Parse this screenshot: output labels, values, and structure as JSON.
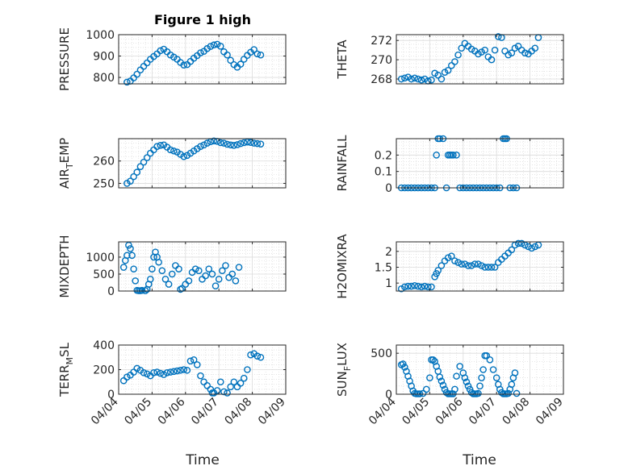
{
  "figure_title": "Figure 1 high",
  "x_axis_label": "Time",
  "x_tick_labels": [
    "04/04",
    "04/05",
    "04/06",
    "04/07",
    "04/08",
    "04/09"
  ],
  "marker_color": "#0072BD",
  "chart_data": [
    {
      "type": "scatter",
      "id": "pressure",
      "title": "Figure 1 high",
      "ylabel": "PRESSURE",
      "ylabel_sub": "",
      "xlim": [
        0,
        5
      ],
      "ylim": [
        770,
        1000
      ],
      "yticks": [
        800,
        900,
        1000
      ],
      "ytick_labels": [
        "800",
        "900",
        "1000"
      ],
      "x": [
        0.25,
        0.35,
        0.45,
        0.55,
        0.65,
        0.75,
        0.85,
        0.95,
        1.05,
        1.15,
        1.25,
        1.35,
        1.45,
        1.55,
        1.65,
        1.75,
        1.85,
        1.95,
        2.05,
        2.15,
        2.25,
        2.35,
        2.45,
        2.55,
        2.65,
        2.75,
        2.85,
        2.95,
        3.05,
        3.15,
        3.25,
        3.35,
        3.45,
        3.55,
        3.65,
        3.75,
        3.85,
        3.95,
        4.05,
        4.15,
        4.25
      ],
      "values": [
        778,
        783,
        798,
        815,
        835,
        852,
        868,
        885,
        898,
        910,
        925,
        932,
        920,
        905,
        895,
        885,
        870,
        858,
        860,
        875,
        890,
        902,
        915,
        922,
        935,
        945,
        952,
        955,
        946,
        920,
        905,
        880,
        860,
        848,
        862,
        885,
        903,
        918,
        930,
        910,
        905
      ]
    },
    {
      "type": "scatter",
      "id": "theta",
      "title": "",
      "ylabel": "THETA",
      "ylabel_sub": "",
      "xlim": [
        0,
        5
      ],
      "ylim": [
        267.5,
        272.6
      ],
      "yticks": [
        268,
        270,
        272
      ],
      "ytick_labels": [
        "268",
        "270",
        "272"
      ],
      "x": [
        0.15,
        0.25,
        0.35,
        0.45,
        0.55,
        0.65,
        0.75,
        0.85,
        0.95,
        1.05,
        1.15,
        1.25,
        1.35,
        1.45,
        1.55,
        1.65,
        1.75,
        1.85,
        1.95,
        2.05,
        2.15,
        2.25,
        2.35,
        2.45,
        2.55,
        2.65,
        2.75,
        2.85,
        2.95,
        3.05,
        3.15,
        3.25,
        3.35,
        3.45,
        3.55,
        3.65,
        3.75,
        3.85,
        3.95,
        4.05,
        4.15,
        4.25
      ],
      "values": [
        268.0,
        268.1,
        268.2,
        268.0,
        268.1,
        268.0,
        267.9,
        268.0,
        267.8,
        267.9,
        268.6,
        268.4,
        268.0,
        268.7,
        268.9,
        269.4,
        269.8,
        270.5,
        271.2,
        271.7,
        271.4,
        271.1,
        270.9,
        270.6,
        270.8,
        271.0,
        270.3,
        270.0,
        271.0,
        272.4,
        272.3,
        270.9,
        270.5,
        270.7,
        271.2,
        271.4,
        271.0,
        270.7,
        270.6,
        270.9,
        271.2,
        272.3
      ]
    },
    {
      "type": "scatter",
      "id": "air_temp",
      "title": "",
      "ylabel": "AIR",
      "ylabel_sub": "T",
      "ylabel_suffix": "EMP",
      "xlim": [
        0,
        5
      ],
      "ylim": [
        248,
        270
      ],
      "yticks": [
        250,
        260
      ],
      "ytick_labels": [
        "250",
        "260"
      ],
      "x": [
        0.25,
        0.35,
        0.45,
        0.55,
        0.65,
        0.75,
        0.85,
        0.95,
        1.05,
        1.15,
        1.25,
        1.35,
        1.45,
        1.55,
        1.65,
        1.75,
        1.85,
        1.95,
        2.05,
        2.15,
        2.25,
        2.35,
        2.45,
        2.55,
        2.65,
        2.75,
        2.85,
        2.95,
        3.05,
        3.15,
        3.25,
        3.35,
        3.45,
        3.55,
        3.65,
        3.75,
        3.85,
        3.95,
        4.05,
        4.15,
        4.25
      ],
      "values": [
        250.0,
        251.0,
        253.0,
        255.0,
        257.5,
        259.5,
        261.5,
        263.5,
        265.0,
        266.5,
        267.0,
        267.2,
        266.2,
        265.0,
        264.5,
        264.0,
        263.0,
        262.0,
        262.5,
        263.5,
        264.5,
        265.5,
        266.5,
        267.2,
        268.0,
        268.6,
        269.0,
        268.8,
        268.2,
        268.0,
        267.5,
        267.2,
        267.0,
        267.3,
        267.8,
        268.2,
        268.5,
        268.3,
        268.0,
        267.8,
        267.6
      ]
    },
    {
      "type": "scatter",
      "id": "rainfall",
      "title": "",
      "ylabel": "RAINFALL",
      "ylabel_sub": "",
      "xlim": [
        0,
        5
      ],
      "ylim": [
        0,
        0.3
      ],
      "yticks": [
        0,
        0.1,
        0.2
      ],
      "ytick_labels": [
        "0",
        "0.1",
        "0.2"
      ],
      "x": [
        0.15,
        0.25,
        0.35,
        0.45,
        0.55,
        0.65,
        0.75,
        0.85,
        0.95,
        1.05,
        1.15,
        1.2,
        1.25,
        1.3,
        1.4,
        1.5,
        1.55,
        1.6,
        1.65,
        1.7,
        1.8,
        1.9,
        2.0,
        2.1,
        2.2,
        2.3,
        2.4,
        2.5,
        2.6,
        2.7,
        2.8,
        2.9,
        3.0,
        3.1,
        3.2,
        3.25,
        3.3,
        3.4,
        3.5,
        3.6
      ],
      "values": [
        0,
        0,
        0,
        0,
        0,
        0,
        0,
        0,
        0,
        0,
        0,
        0.2,
        0.3,
        0.3,
        0.3,
        0,
        0.2,
        0.2,
        0.2,
        0.2,
        0.2,
        0,
        0,
        0,
        0,
        0,
        0,
        0,
        0,
        0,
        0,
        0,
        0,
        0,
        0.3,
        0.3,
        0.3,
        0,
        0,
        0
      ]
    },
    {
      "type": "scatter",
      "id": "mixdepth",
      "title": "",
      "ylabel": "MIXDEPTH",
      "ylabel_sub": "",
      "xlim": [
        0,
        5
      ],
      "ylim": [
        0,
        1450
      ],
      "yticks": [
        0,
        500,
        1000
      ],
      "ytick_labels": [
        "0",
        "500",
        "1000"
      ],
      "x": [
        0.15,
        0.2,
        0.25,
        0.3,
        0.35,
        0.4,
        0.45,
        0.5,
        0.55,
        0.6,
        0.65,
        0.7,
        0.8,
        0.85,
        0.9,
        0.95,
        1.0,
        1.05,
        1.1,
        1.15,
        1.2,
        1.3,
        1.4,
        1.5,
        1.6,
        1.7,
        1.8,
        1.85,
        1.9,
        2.0,
        2.1,
        2.2,
        2.3,
        2.4,
        2.5,
        2.6,
        2.7,
        2.8,
        2.9,
        3.0,
        3.1,
        3.2,
        3.3,
        3.4,
        3.5,
        3.6
      ],
      "values": [
        700,
        900,
        1050,
        1350,
        1250,
        1050,
        650,
        300,
        20,
        10,
        10,
        20,
        10,
        50,
        200,
        350,
        650,
        1000,
        1150,
        1000,
        850,
        600,
        350,
        200,
        500,
        750,
        650,
        50,
        80,
        200,
        300,
        550,
        650,
        600,
        350,
        450,
        650,
        500,
        150,
        350,
        600,
        750,
        400,
        500,
        300,
        700
      ]
    },
    {
      "type": "scatter",
      "id": "h2omixra",
      "title": "",
      "ylabel": "H2OMIXRA",
      "ylabel_sub": "",
      "xlim": [
        0,
        5
      ],
      "ylim": [
        0.75,
        2.3
      ],
      "yticks": [
        1,
        1.5,
        2
      ],
      "ytick_labels": [
        "1",
        "1.5",
        "2"
      ],
      "x": [
        0.15,
        0.25,
        0.35,
        0.45,
        0.55,
        0.65,
        0.75,
        0.85,
        0.95,
        1.05,
        1.15,
        1.2,
        1.25,
        1.35,
        1.45,
        1.55,
        1.65,
        1.75,
        1.85,
        1.95,
        2.05,
        2.15,
        2.25,
        2.35,
        2.45,
        2.55,
        2.65,
        2.75,
        2.85,
        2.95,
        3.05,
        3.15,
        3.25,
        3.35,
        3.45,
        3.55,
        3.65,
        3.75,
        3.85,
        3.95,
        4.05,
        4.15,
        4.25
      ],
      "values": [
        0.82,
        0.88,
        0.9,
        0.9,
        0.92,
        0.9,
        0.88,
        0.9,
        0.88,
        0.88,
        1.2,
        1.3,
        1.4,
        1.55,
        1.7,
        1.8,
        1.85,
        1.7,
        1.65,
        1.6,
        1.6,
        1.55,
        1.55,
        1.6,
        1.6,
        1.55,
        1.5,
        1.5,
        1.5,
        1.5,
        1.65,
        1.75,
        1.85,
        1.95,
        2.05,
        2.2,
        2.25,
        2.25,
        2.2,
        2.15,
        2.1,
        2.15,
        2.2
      ]
    },
    {
      "type": "scatter",
      "id": "terrain",
      "title": "",
      "ylabel": "TERR",
      "ylabel_sub": "M",
      "ylabel_suffix": "SL",
      "xlim": [
        0,
        5
      ],
      "ylim": [
        0,
        400
      ],
      "yticks": [
        0,
        200,
        400
      ],
      "ytick_labels": [
        "0",
        "200",
        "400"
      ],
      "x": [
        0.15,
        0.25,
        0.35,
        0.45,
        0.55,
        0.65,
        0.75,
        0.85,
        0.95,
        1.05,
        1.15,
        1.25,
        1.35,
        1.45,
        1.55,
        1.65,
        1.75,
        1.85,
        1.95,
        2.05,
        2.15,
        2.25,
        2.35,
        2.45,
        2.55,
        2.65,
        2.75,
        2.8,
        2.85,
        2.95,
        3.05,
        3.15,
        3.25,
        3.35,
        3.45,
        3.55,
        3.65,
        3.75,
        3.85,
        3.95,
        4.05,
        4.15,
        4.25
      ],
      "values": [
        110,
        140,
        155,
        180,
        210,
        195,
        175,
        165,
        150,
        175,
        180,
        170,
        160,
        175,
        180,
        185,
        190,
        195,
        200,
        195,
        270,
        280,
        240,
        150,
        100,
        70,
        40,
        10,
        10,
        30,
        100,
        20,
        10,
        60,
        100,
        60,
        90,
        130,
        200,
        320,
        330,
        310,
        300
      ]
    },
    {
      "type": "scatter",
      "id": "sunflux",
      "title": "",
      "ylabel": "SUN",
      "ylabel_sub": "F",
      "ylabel_suffix": "LUX",
      "xlim": [
        0,
        5
      ],
      "ylim": [
        0,
        600
      ],
      "yticks": [
        0,
        500
      ],
      "ytick_labels": [
        "0",
        "500"
      ],
      "x": [
        0.15,
        0.2,
        0.25,
        0.3,
        0.35,
        0.4,
        0.45,
        0.5,
        0.55,
        0.6,
        0.65,
        0.7,
        0.8,
        0.9,
        1.0,
        1.05,
        1.1,
        1.15,
        1.2,
        1.25,
        1.3,
        1.35,
        1.4,
        1.45,
        1.5,
        1.55,
        1.6,
        1.65,
        1.7,
        1.75,
        1.8,
        1.9,
        2.0,
        2.05,
        2.1,
        2.15,
        2.2,
        2.25,
        2.3,
        2.35,
        2.4,
        2.45,
        2.5,
        2.55,
        2.6,
        2.65,
        2.7,
        2.8,
        2.9,
        3.0,
        3.05,
        3.1,
        3.15,
        3.2,
        3.25,
        3.3,
        3.35,
        3.4,
        3.45,
        3.5,
        3.55,
        3.6
      ],
      "values": [
        360,
        370,
        330,
        280,
        220,
        160,
        100,
        40,
        10,
        5,
        5,
        5,
        10,
        60,
        200,
        420,
        420,
        400,
        340,
        280,
        210,
        160,
        110,
        60,
        20,
        5,
        5,
        5,
        5,
        60,
        220,
        340,
        260,
        200,
        150,
        100,
        60,
        20,
        5,
        5,
        5,
        10,
        100,
        200,
        300,
        470,
        470,
        420,
        300,
        200,
        120,
        60,
        20,
        5,
        5,
        5,
        10,
        60,
        120,
        200,
        260,
        10
      ]
    }
  ]
}
